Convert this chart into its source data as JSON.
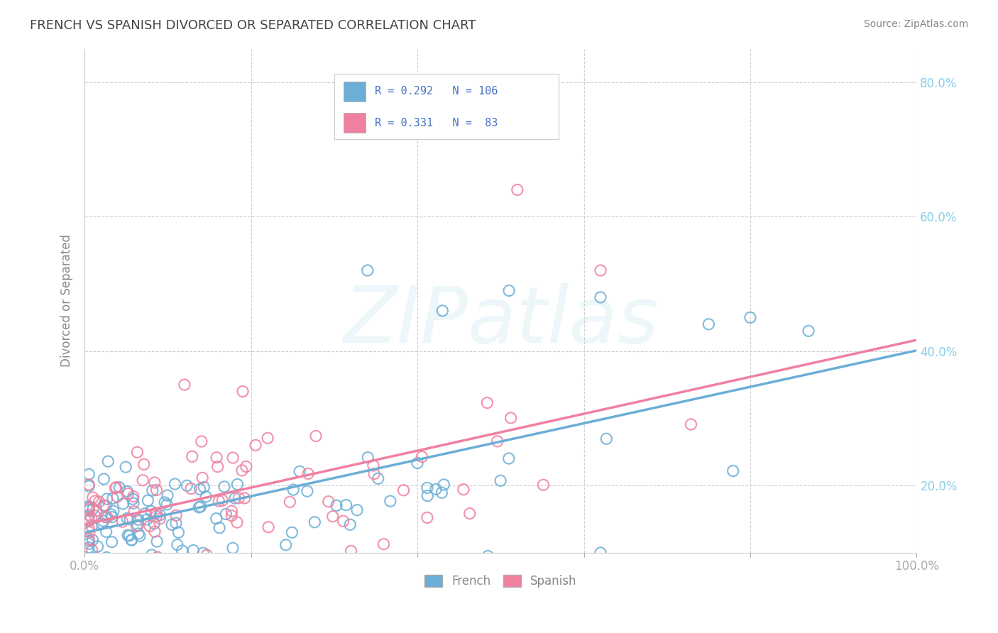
{
  "title": "FRENCH VS SPANISH DIVORCED OR SEPARATED CORRELATION CHART",
  "source": "Source: ZipAtlas.com",
  "ylabel": "Divorced or Separated",
  "french_color": "#6baed6",
  "spanish_color": "#f080a0",
  "french_R": 0.292,
  "french_N": 106,
  "spanish_R": 0.331,
  "spanish_N": 83,
  "xlim": [
    0,
    1
  ],
  "ylim": [
    0.1,
    0.85
  ],
  "x_ticks": [
    0,
    0.2,
    0.4,
    0.6,
    0.8,
    1.0
  ],
  "x_tick_labels": [
    "0.0%",
    "",
    "",
    "",
    "",
    "100.0%"
  ],
  "y_ticks": [
    0.2,
    0.4,
    0.6,
    0.8
  ],
  "y_tick_labels": [
    "20.0%",
    "40.0%",
    "60.0%",
    "80.0%"
  ],
  "watermark": "ZIPatlas",
  "legend_label_french": "French",
  "legend_label_spanish": "Spanish",
  "bg_color": "#ffffff",
  "grid_color": "#d0d0d0",
  "title_color": "#444444",
  "axis_label_color": "#888888",
  "tick_color": "#aaaaaa",
  "right_axis_tick_color": "#87ceeb",
  "legend_text_color": "#4472c4",
  "r_value_color": "#4472c4"
}
